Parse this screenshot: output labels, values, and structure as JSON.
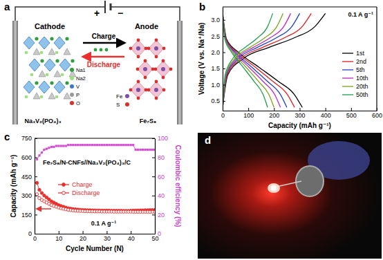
{
  "panel_labels": [
    "a",
    "b",
    "c",
    "d"
  ],
  "diagram": {
    "positive": "+",
    "negative": "−",
    "cathode_label": "Cathode",
    "anode_label": "Anode",
    "charge": "Charge",
    "discharge": "Discharge",
    "cathode_formula": "Na₃V₂(PO₄)₃",
    "anode_formula": "Fe₇S₈",
    "cathode_legend": [
      {
        "label": "Na1",
        "color": "#2e9e3e"
      },
      {
        "label": "Na2",
        "color": "#9be07a"
      },
      {
        "label": "V",
        "color": "#3a78c8"
      },
      {
        "label": "P",
        "color": "#9a9a9a"
      },
      {
        "label": "O",
        "color": "#d9302c"
      }
    ],
    "anode_legend": [
      {
        "label": "Fe",
        "color": "#7b4fa6"
      },
      {
        "label": "S",
        "color": "#d9302c"
      }
    ]
  },
  "chart_data": [
    {
      "type": "line",
      "x_label": "Capacity (mAh g⁻¹)",
      "y_label": "Voltage (V vs. Na⁺/Na)",
      "annotations": [
        "0.1 A g⁻¹"
      ],
      "xlim": [
        0,
        600
      ],
      "xticks": [
        0,
        100,
        200,
        300,
        400,
        500,
        600
      ],
      "ylim": [
        0.2,
        3.4
      ],
      "yticks": [
        0.5,
        {
          "value": 1,
          "label": "1.0"
        },
        1.5,
        {
          "value": 2,
          "label": "2.0"
        },
        2.5,
        {
          "value": 3,
          "label": "3.0"
        }
      ],
      "legend": "right",
      "series": [
        {
          "name": "1st",
          "color": "#000000",
          "x": [
            0,
            15.5,
            62,
            139.5,
            217,
            279,
            310,
            null,
            0,
            20,
            80,
            180,
            280,
            360,
            400
          ],
          "values": [
            3.2,
            2.4,
            2.0,
            1.55,
            1.1,
            0.7,
            0.3,
            null,
            0.3,
            1.3,
            1.8,
            2.15,
            2.45,
            2.8,
            3.2
          ]
        },
        {
          "name": "2nd",
          "color": "#e41a1c",
          "x": [
            0,
            14,
            56,
            126,
            196,
            252,
            280,
            null,
            0,
            17.3,
            69,
            155.3,
            241.5,
            310.5,
            345
          ],
          "values": [
            3.2,
            2.4,
            2.0,
            1.55,
            1.1,
            0.7,
            0.3,
            null,
            0.3,
            1.3,
            1.8,
            2.15,
            2.45,
            2.8,
            3.2
          ]
        },
        {
          "name": "5th",
          "color": "#1f3fd1",
          "x": [
            0,
            12.5,
            50,
            112.5,
            175,
            225,
            250,
            null,
            0,
            15,
            60,
            135,
            210,
            270,
            300
          ],
          "values": [
            3.2,
            2.4,
            2.0,
            1.55,
            1.1,
            0.7,
            0.3,
            null,
            0.3,
            1.3,
            1.8,
            2.15,
            2.45,
            2.8,
            3.2
          ]
        },
        {
          "name": "10th",
          "color": "#c026c0",
          "x": [
            0,
            11.3,
            45,
            101.3,
            157.5,
            202.5,
            225,
            null,
            0,
            13.3,
            53,
            119.3,
            185.5,
            238.5,
            265
          ],
          "values": [
            3.2,
            2.4,
            2.0,
            1.55,
            1.1,
            0.7,
            0.3,
            null,
            0.3,
            1.3,
            1.8,
            2.15,
            2.45,
            2.8,
            3.2
          ]
        },
        {
          "name": "20th",
          "color": "#7aa31c",
          "x": [
            0,
            10,
            40,
            90,
            140,
            180,
            200,
            null,
            0,
            11.8,
            47,
            105.8,
            164.5,
            211.5,
            235
          ],
          "values": [
            3.2,
            2.4,
            2.0,
            1.55,
            1.1,
            0.7,
            0.3,
            null,
            0.3,
            1.3,
            1.8,
            2.15,
            2.45,
            2.8,
            3.2
          ]
        },
        {
          "name": "50th",
          "color": "#1e9e4a",
          "x": [
            0,
            8.8,
            35,
            78.8,
            122.5,
            157.5,
            175,
            null,
            0,
            9.8,
            39,
            87.8,
            136.5,
            175.5,
            195
          ],
          "values": [
            3.2,
            2.4,
            2.0,
            1.55,
            1.1,
            0.7,
            0.3,
            null,
            0.3,
            1.3,
            1.8,
            2.15,
            2.45,
            2.8,
            3.2
          ]
        }
      ]
    },
    {
      "type": "line",
      "x_label": "Cycle Number (N)",
      "y_label": "Capacity (mAh g⁻¹)",
      "y2_label": "Coulombic efficiency (%)",
      "annotations": [
        "Fe₇S₈/N-CNFs//Na₃V₂(PO₄)₃/C",
        "0.1 A g⁻¹"
      ],
      "x": [
        1,
        2,
        3,
        4,
        5,
        6,
        7,
        8,
        9,
        10,
        11,
        12,
        13,
        14,
        15,
        16,
        17,
        18,
        19,
        20,
        21,
        22,
        23,
        24,
        25,
        26,
        27,
        28,
        29,
        30,
        31,
        32,
        33,
        34,
        35,
        36,
        37,
        38,
        39,
        40,
        41,
        42,
        43,
        44,
        45,
        46,
        47,
        48,
        49,
        50
      ],
      "xlim": [
        0,
        50
      ],
      "xticks": [
        0,
        10,
        20,
        30,
        40,
        50
      ],
      "ylim": [
        0,
        750
      ],
      "yticks": [
        0,
        150,
        300,
        450,
        600,
        750
      ],
      "y2lim": [
        0,
        100
      ],
      "y2ticks": [
        0,
        20,
        40,
        60,
        80,
        100
      ],
      "legend": "left",
      "series": [
        {
          "name": "Charge",
          "color": "#e8312f",
          "marker": "circle",
          "line_style": "solid",
          "values": [
            400,
            345,
            320,
            300,
            285,
            270,
            255,
            245,
            235,
            225,
            218,
            212,
            206,
            200,
            197,
            194,
            192,
            190,
            188,
            187,
            186,
            185,
            185,
            184,
            184,
            183,
            183,
            182,
            182,
            182,
            182,
            181,
            181,
            181,
            181,
            181,
            180,
            180,
            180,
            181,
            182,
            183,
            183,
            184,
            184,
            185,
            185,
            186,
            186,
            187
          ]
        },
        {
          "name": "Discharge",
          "color": "#e8312f",
          "marker": "open_circle",
          "line_style": "solid",
          "values": [
            310,
            280,
            265,
            255,
            245,
            235,
            225,
            218,
            212,
            206,
            200,
            196,
            192,
            188,
            185,
            183,
            181,
            180,
            179,
            178,
            177,
            177,
            176,
            176,
            175,
            175,
            175,
            174,
            174,
            174,
            174,
            174,
            173,
            173,
            173,
            173,
            173,
            173,
            173,
            173,
            172,
            172,
            172,
            172,
            172,
            172,
            172,
            172,
            172,
            172
          ]
        },
        {
          "color": "#d64fd6",
          "marker": "square",
          "line_style": "solid",
          "axis": "y2",
          "values": [
            78,
            82,
            85,
            88,
            89,
            90,
            91,
            91,
            92,
            92,
            92,
            92,
            92,
            93,
            93,
            93,
            93,
            93,
            93,
            93,
            93,
            93,
            93,
            93,
            93,
            93,
            93,
            93,
            93,
            93,
            93,
            93,
            93,
            93,
            93,
            93,
            93,
            93,
            93,
            93,
            93,
            88,
            88,
            88,
            88,
            88,
            88,
            88,
            88,
            88
          ]
        }
      ]
    }
  ]
}
